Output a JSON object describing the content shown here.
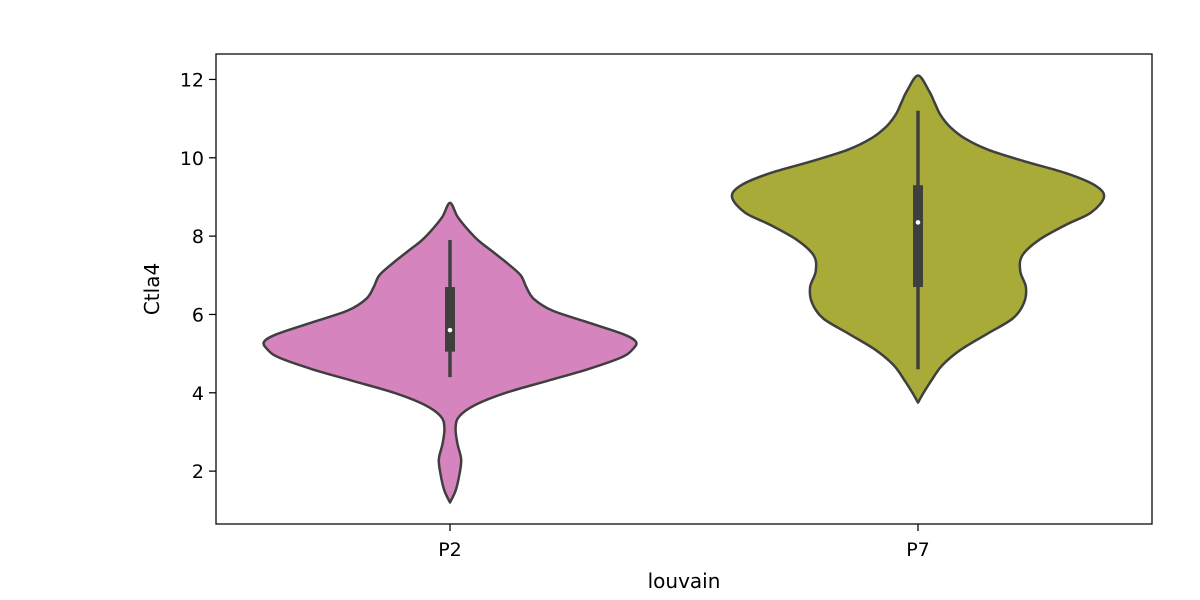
{
  "chart_data": {
    "type": "violin",
    "xlabel": "louvain",
    "ylabel": "Ctla4",
    "ylim": [
      0.65,
      12.65
    ],
    "yticks": [
      2,
      4,
      6,
      8,
      10,
      12
    ],
    "categories": [
      "P2",
      "P7"
    ],
    "grid": false,
    "legend": "none",
    "series": [
      {
        "category": "P2",
        "color": "#d684be",
        "min": 1.2,
        "max": 8.85,
        "whisker_low": 4.4,
        "q1": 5.05,
        "median": 5.6,
        "q3": 6.7,
        "whisker_high": 7.9,
        "density_profile": [
          [
            1.2,
            0.0
          ],
          [
            1.5,
            0.03
          ],
          [
            1.9,
            0.05
          ],
          [
            2.3,
            0.06
          ],
          [
            2.7,
            0.04
          ],
          [
            3.1,
            0.03
          ],
          [
            3.4,
            0.05
          ],
          [
            3.7,
            0.14
          ],
          [
            4.0,
            0.3
          ],
          [
            4.3,
            0.52
          ],
          [
            4.6,
            0.74
          ],
          [
            4.9,
            0.92
          ],
          [
            5.1,
            0.98
          ],
          [
            5.3,
            1.0
          ],
          [
            5.5,
            0.93
          ],
          [
            5.8,
            0.74
          ],
          [
            6.1,
            0.55
          ],
          [
            6.4,
            0.45
          ],
          [
            6.7,
            0.41
          ],
          [
            7.0,
            0.38
          ],
          [
            7.3,
            0.31
          ],
          [
            7.6,
            0.23
          ],
          [
            7.9,
            0.15
          ],
          [
            8.2,
            0.09
          ],
          [
            8.5,
            0.04
          ],
          [
            8.85,
            0.0
          ]
        ]
      },
      {
        "category": "P7",
        "color": "#a8ab37",
        "min": 3.75,
        "max": 12.1,
        "whisker_low": 4.6,
        "q1": 6.7,
        "median": 8.35,
        "q3": 9.3,
        "whisker_high": 11.2,
        "density_profile": [
          [
            3.75,
            0.0
          ],
          [
            4.0,
            0.03
          ],
          [
            4.3,
            0.07
          ],
          [
            4.7,
            0.13
          ],
          [
            5.1,
            0.23
          ],
          [
            5.5,
            0.37
          ],
          [
            5.9,
            0.51
          ],
          [
            6.3,
            0.57
          ],
          [
            6.7,
            0.58
          ],
          [
            7.1,
            0.55
          ],
          [
            7.5,
            0.56
          ],
          [
            7.9,
            0.65
          ],
          [
            8.3,
            0.8
          ],
          [
            8.6,
            0.93
          ],
          [
            9.0,
            1.0
          ],
          [
            9.3,
            0.95
          ],
          [
            9.6,
            0.8
          ],
          [
            9.9,
            0.58
          ],
          [
            10.2,
            0.38
          ],
          [
            10.5,
            0.25
          ],
          [
            10.8,
            0.17
          ],
          [
            11.1,
            0.12
          ],
          [
            11.4,
            0.09
          ],
          [
            11.7,
            0.06
          ],
          [
            12.1,
            0.0
          ]
        ]
      }
    ]
  }
}
